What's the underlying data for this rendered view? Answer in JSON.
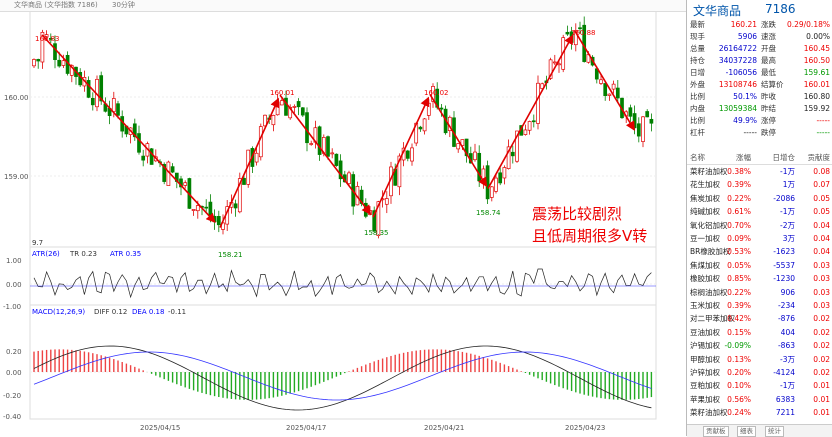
{
  "topbar": {
    "title": "文华商品 (文华指数 7186)",
    "period": "30分钟"
  },
  "chart": {
    "price_ticks": [
      "160.00",
      "159.00"
    ],
    "atr_ticks": [
      "1.00",
      "0.00",
      "-1.00"
    ],
    "macd_ticks": [
      "0.20",
      "0.00",
      "-0.20",
      "-0.40"
    ],
    "atr_label": "ATR(26)",
    "atr_tr": "TR 0.23",
    "atr_val": "ATR 0.35",
    "macd_label": "MACD(12,26,9)",
    "macd_diff": "DIFF 0.12",
    "macd_dea": "DEA 0.18",
    "macd_val": "-0.11",
    "dates": [
      "2025/04/15",
      "2025/04/17",
      "2025/04/21",
      "2025/04/23"
    ],
    "extreme_labels": [
      "160.83",
      "158.21",
      "160.01",
      "158.35",
      "160.02",
      "158.74",
      "160.88"
    ],
    "annotation_line1": "震荡比较剧烈",
    "annotation_line2": "且低周期很多V转",
    "sub_marker": "9.7"
  },
  "chart_data": {
    "type": "candlestick",
    "swing_points": [
      {
        "label": "160.83",
        "value": 160.83
      },
      {
        "label": "158.21",
        "value": 158.21
      },
      {
        "label": "160.01",
        "value": 160.01
      },
      {
        "label": "158.35",
        "value": 158.35
      },
      {
        "label": "160.02",
        "value": 160.02
      },
      {
        "label": "158.74",
        "value": 158.74
      },
      {
        "label": "160.88",
        "value": 160.88
      }
    ],
    "ylim": [
      158.0,
      161.1
    ],
    "trend_lines": [
      "down",
      "up",
      "down",
      "up",
      "down",
      "up",
      "down"
    ],
    "x_dates": [
      "2025/04/15",
      "2025/04/17",
      "2025/04/21",
      "2025/04/23"
    ]
  },
  "panel": {
    "name": "文华商品",
    "code": "7186",
    "quote_rows": [
      {
        "l1": "最新",
        "v1": "160.21",
        "c1": "red",
        "l2": "涨跌",
        "v2": "0.29/0.18%",
        "c2": "red"
      },
      {
        "l1": "现手",
        "v1": "5906",
        "c1": "blu",
        "l2": "速涨",
        "v2": "0.00%",
        "c2": "blk"
      },
      {
        "l1": "总量",
        "v1": "26164722",
        "c1": "blu",
        "l2": "开盘",
        "v2": "160.45",
        "c2": "red"
      },
      {
        "l1": "持仓",
        "v1": "34037228",
        "c1": "blu",
        "l2": "最高",
        "v2": "160.50",
        "c2": "red"
      },
      {
        "l1": "日增",
        "v1": "-106056",
        "c1": "blu",
        "l2": "最低",
        "v2": "159.61",
        "c2": "grn"
      },
      {
        "l1": "外盘",
        "v1": "13108746",
        "c1": "red",
        "l2": "结算价",
        "v2": "160.01",
        "c2": "red"
      },
      {
        "l1": "比例",
        "v1": "50.1%",
        "c1": "blu",
        "l2": "昨收",
        "v2": "160.80",
        "c2": "blk"
      },
      {
        "l1": "内盘",
        "v1": "13059384",
        "c1": "grn",
        "l2": "昨结",
        "v2": "159.92",
        "c2": "blk"
      },
      {
        "l1": "比例",
        "v1": "49.9%",
        "c1": "blu",
        "l2": "涨停",
        "v2": "-----",
        "c2": "red"
      },
      {
        "l1": "杠杆",
        "v1": "-----",
        "c1": "blk",
        "l2": "跌停",
        "v2": "-----",
        "c2": "grn"
      }
    ],
    "table_headers": [
      "名称",
      "涨幅",
      "日增仓",
      "贡献度"
    ],
    "table_rows": [
      {
        "name": "菜籽油加权",
        "pct": "0.38%",
        "pc": "red",
        "pos": "-1万",
        "contrib": "0.08"
      },
      {
        "name": "花生加权",
        "pct": "0.39%",
        "pc": "red",
        "pos": "1万",
        "contrib": "0.07"
      },
      {
        "name": "焦炭加权",
        "pct": "0.22%",
        "pc": "red",
        "pos": "-2086",
        "contrib": "0.05"
      },
      {
        "name": "纯碱加权",
        "pct": "0.61%",
        "pc": "red",
        "pos": "-1万",
        "contrib": "0.05"
      },
      {
        "name": "氧化铝加权",
        "pct": "0.70%",
        "pc": "red",
        "pos": "-2万",
        "contrib": "0.04"
      },
      {
        "name": "豆一加权",
        "pct": "0.09%",
        "pc": "red",
        "pos": "3万",
        "contrib": "0.04"
      },
      {
        "name": "BR橡胶加权",
        "pct": "0.53%",
        "pc": "red",
        "pos": "-1623",
        "contrib": "0.04"
      },
      {
        "name": "焦煤加权",
        "pct": "0.05%",
        "pc": "red",
        "pos": "-5537",
        "contrib": "0.03"
      },
      {
        "name": "橡胶加权",
        "pct": "0.85%",
        "pc": "red",
        "pos": "-1230",
        "contrib": "0.03"
      },
      {
        "name": "棕榈油加权",
        "pct": "0.22%",
        "pc": "red",
        "pos": "906",
        "contrib": "0.03"
      },
      {
        "name": "玉米加权",
        "pct": "0.39%",
        "pc": "red",
        "pos": "-234",
        "contrib": "0.03"
      },
      {
        "name": "对二甲苯加权",
        "pct": "0.42%",
        "pc": "red",
        "pos": "-876",
        "contrib": "0.02"
      },
      {
        "name": "豆油加权",
        "pct": "0.15%",
        "pc": "red",
        "pos": "404",
        "contrib": "0.02"
      },
      {
        "name": "沪锡加权",
        "pct": "-0.09%",
        "pc": "grn",
        "pos": "-863",
        "contrib": "0.02"
      },
      {
        "name": "甲醇加权",
        "pct": "0.13%",
        "pc": "red",
        "pos": "-3万",
        "contrib": "0.02"
      },
      {
        "name": "沪锌加权",
        "pct": "0.20%",
        "pc": "red",
        "pos": "-4124",
        "contrib": "0.02"
      },
      {
        "name": "豆粕加权",
        "pct": "0.10%",
        "pc": "red",
        "pos": "-1万",
        "contrib": "0.01"
      },
      {
        "name": "苹果加权",
        "pct": "0.56%",
        "pc": "red",
        "pos": "6383",
        "contrib": "0.01"
      },
      {
        "name": "菜籽油加权",
        "pct": "0.24%",
        "pc": "red",
        "pos": "7211",
        "contrib": "0.01"
      }
    ],
    "tabs": [
      "贡献板",
      "细表",
      "统计"
    ]
  },
  "colors": {
    "up": "#e00000",
    "down": "#008000",
    "arrow": "#e00000",
    "annotation": "#e00000"
  }
}
